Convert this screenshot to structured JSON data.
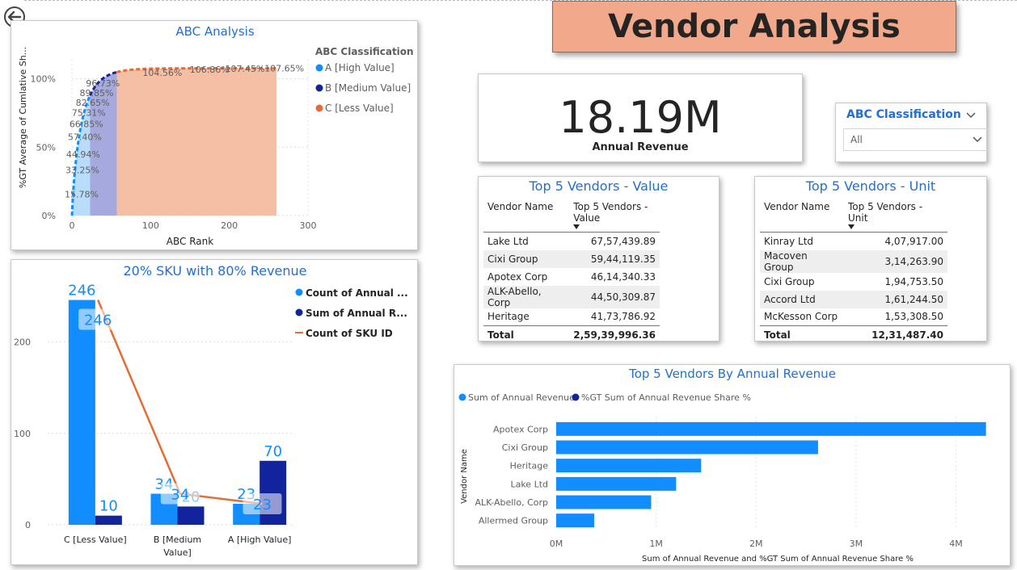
{
  "page": {
    "title": "Vendor Analysis",
    "back_icon": "back-arrow-icon"
  },
  "kpi": {
    "value": "18.19M",
    "label": "Annual Revenue"
  },
  "slicer": {
    "title": "ABC Classification",
    "value": "All",
    "icon": "chevron-down-icon"
  },
  "top5_value": {
    "title": "Top 5 Vendors - Value",
    "col_name": "Vendor Name",
    "col_value": "Top 5 Vendors - Value",
    "rows": [
      {
        "name": "Lake Ltd",
        "value": "67,57,439.89"
      },
      {
        "name": "Cixi Group",
        "value": "59,44,119.35"
      },
      {
        "name": "Apotex Corp",
        "value": "46,14,340.33"
      },
      {
        "name": "ALK-Abello, Corp",
        "value": "44,50,309.87"
      },
      {
        "name": "Heritage",
        "value": "41,73,786.92"
      }
    ],
    "total_label": "Total",
    "total_value": "2,59,39,996.36"
  },
  "top5_unit": {
    "title": "Top 5 Vendors - Unit",
    "col_name": "Vendor Name",
    "col_value": "Top 5 Vendors - Unit",
    "rows": [
      {
        "name": "Kinray Ltd",
        "value": "4,07,917.00"
      },
      {
        "name": "Macoven Group",
        "value": "3,14,263.90"
      },
      {
        "name": "Cixi Group",
        "value": "1,94,753.50"
      },
      {
        "name": "Accord Ltd",
        "value": "1,61,244.50"
      },
      {
        "name": "McKesson Corp",
        "value": "1,53,308.50"
      }
    ],
    "total_label": "Total",
    "total_value": "12,31,487.40"
  },
  "chart_data": [
    {
      "id": "abc",
      "type": "area",
      "title": "ABC Analysis",
      "xlabel": "ABC Rank",
      "ylabel": "%GT Average of Cumlative Sh...",
      "xlim": [
        0,
        300
      ],
      "ylim": [
        0,
        1.08
      ],
      "x_ticks": [
        "0",
        "100",
        "200",
        "300"
      ],
      "y_ticks": [
        "0%",
        "50%",
        "100%"
      ],
      "legend_title": "ABC Classification",
      "legend_position": "right",
      "series": [
        {
          "name": "A [High Value]",
          "color": "#118dff",
          "fill": "#b9dcfb",
          "x_range": [
            0,
            23
          ]
        },
        {
          "name": "B [Medium Value]",
          "color": "#12239e",
          "fill": "#a5a9dd",
          "x_range": [
            23,
            57
          ]
        },
        {
          "name": "C [Less Value]",
          "color": "#e66c37",
          "fill": "#f4bfa4",
          "x_range": [
            57,
            260
          ]
        }
      ],
      "points": [
        {
          "x": 1,
          "y": 0.1578,
          "label": "15.78%"
        },
        {
          "x": 2,
          "y": 0.3325,
          "label": "33.25%"
        },
        {
          "x": 3,
          "y": 0.4494,
          "label": "44.94%"
        },
        {
          "x": 5,
          "y": 0.574,
          "label": "57.40%"
        },
        {
          "x": 7,
          "y": 0.6685,
          "label": "66.85%"
        },
        {
          "x": 10,
          "y": 0.7531,
          "label": "75.31%"
        },
        {
          "x": 15,
          "y": 0.8265,
          "label": "82.65%"
        },
        {
          "x": 20,
          "y": 0.8985,
          "label": "89.85%"
        },
        {
          "x": 28,
          "y": 0.9673,
          "label": "96.73%"
        },
        {
          "x": 100,
          "y": 1.0456,
          "label": "104.56%"
        },
        {
          "x": 160,
          "y": 1.0686,
          "label": "106.86%"
        },
        {
          "x": 205,
          "y": 1.0745,
          "label": "107.45%"
        },
        {
          "x": 255,
          "y": 1.0765,
          "label": "107.65%"
        }
      ]
    },
    {
      "id": "sku",
      "type": "bar",
      "title": "20% SKU with 80% Revenue",
      "categories": [
        "C [Less Value]",
        "B [Medium Value]",
        "A [High Value]"
      ],
      "ylim": [
        0,
        250
      ],
      "y_ticks": [
        "0",
        "100",
        "200"
      ],
      "legend_position": "top-right",
      "series": [
        {
          "name": "Count of Annual ...",
          "color": "#118dff",
          "values": [
            246,
            34,
            23
          ]
        },
        {
          "name": "Sum of Annual R...",
          "color": "#12239e",
          "values": [
            10,
            20,
            70
          ]
        },
        {
          "name": "Count of SKU ID",
          "color": "#e66c37",
          "kind": "line",
          "values": [
            246,
            34,
            23
          ]
        }
      ]
    },
    {
      "id": "rev",
      "type": "bar",
      "orientation": "horizontal",
      "title": "Top 5 Vendors By Annual Revenue",
      "xlabel": "Sum of Annual Revenue and %GT Sum of Annual Revenue Share %",
      "ylabel": "Vendor Name",
      "xlim": [
        0,
        4400000
      ],
      "x_ticks": [
        "0M",
        "1M",
        "2M",
        "3M",
        "4M"
      ],
      "legend_position": "top-left",
      "categories": [
        "Apotex Corp",
        "Cixi Group",
        "Heritage",
        "Lake Ltd",
        "ALK-Abello, Corp",
        "Allermed Group"
      ],
      "series": [
        {
          "name": "Sum of Annual Revenue",
          "color": "#118dff",
          "values": [
            4300000,
            2620000,
            1450000,
            1200000,
            950000,
            380000
          ]
        },
        {
          "name": "%GT Sum of Annual Revenue Share %",
          "color": "#12239e",
          "values": [
            0,
            0,
            0,
            0,
            0,
            0
          ]
        }
      ]
    }
  ]
}
